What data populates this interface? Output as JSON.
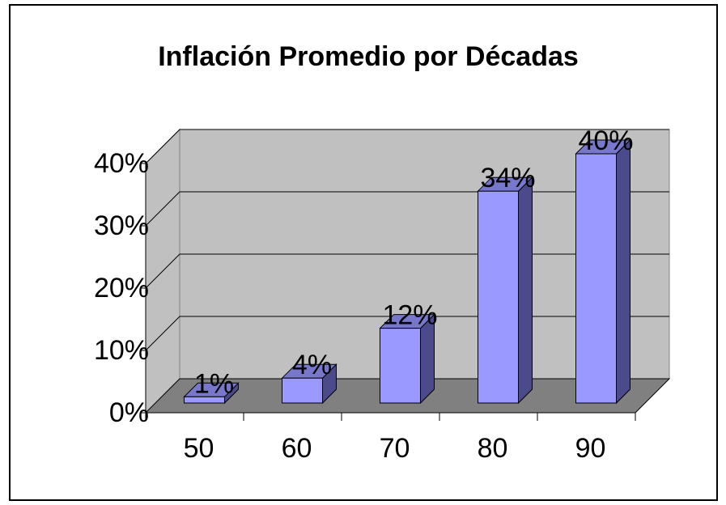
{
  "chart_data": {
    "type": "bar3d",
    "title": "Inflación Promedio por Décadas",
    "categories": [
      "50",
      "60",
      "70",
      "80",
      "90"
    ],
    "values": [
      1,
      4,
      12,
      34,
      40
    ],
    "value_labels": [
      "1%",
      "4%",
      "12%",
      "34%",
      "40%"
    ],
    "color": "#9999ff",
    "ylim": [
      0,
      40
    ],
    "yticks": [
      {
        "value": 0,
        "label": "0%"
      },
      {
        "value": 10,
        "label": "10%"
      },
      {
        "value": 20,
        "label": "20%"
      },
      {
        "value": 30,
        "label": "30%"
      },
      {
        "value": 40,
        "label": "40%"
      }
    ],
    "grid": true
  }
}
